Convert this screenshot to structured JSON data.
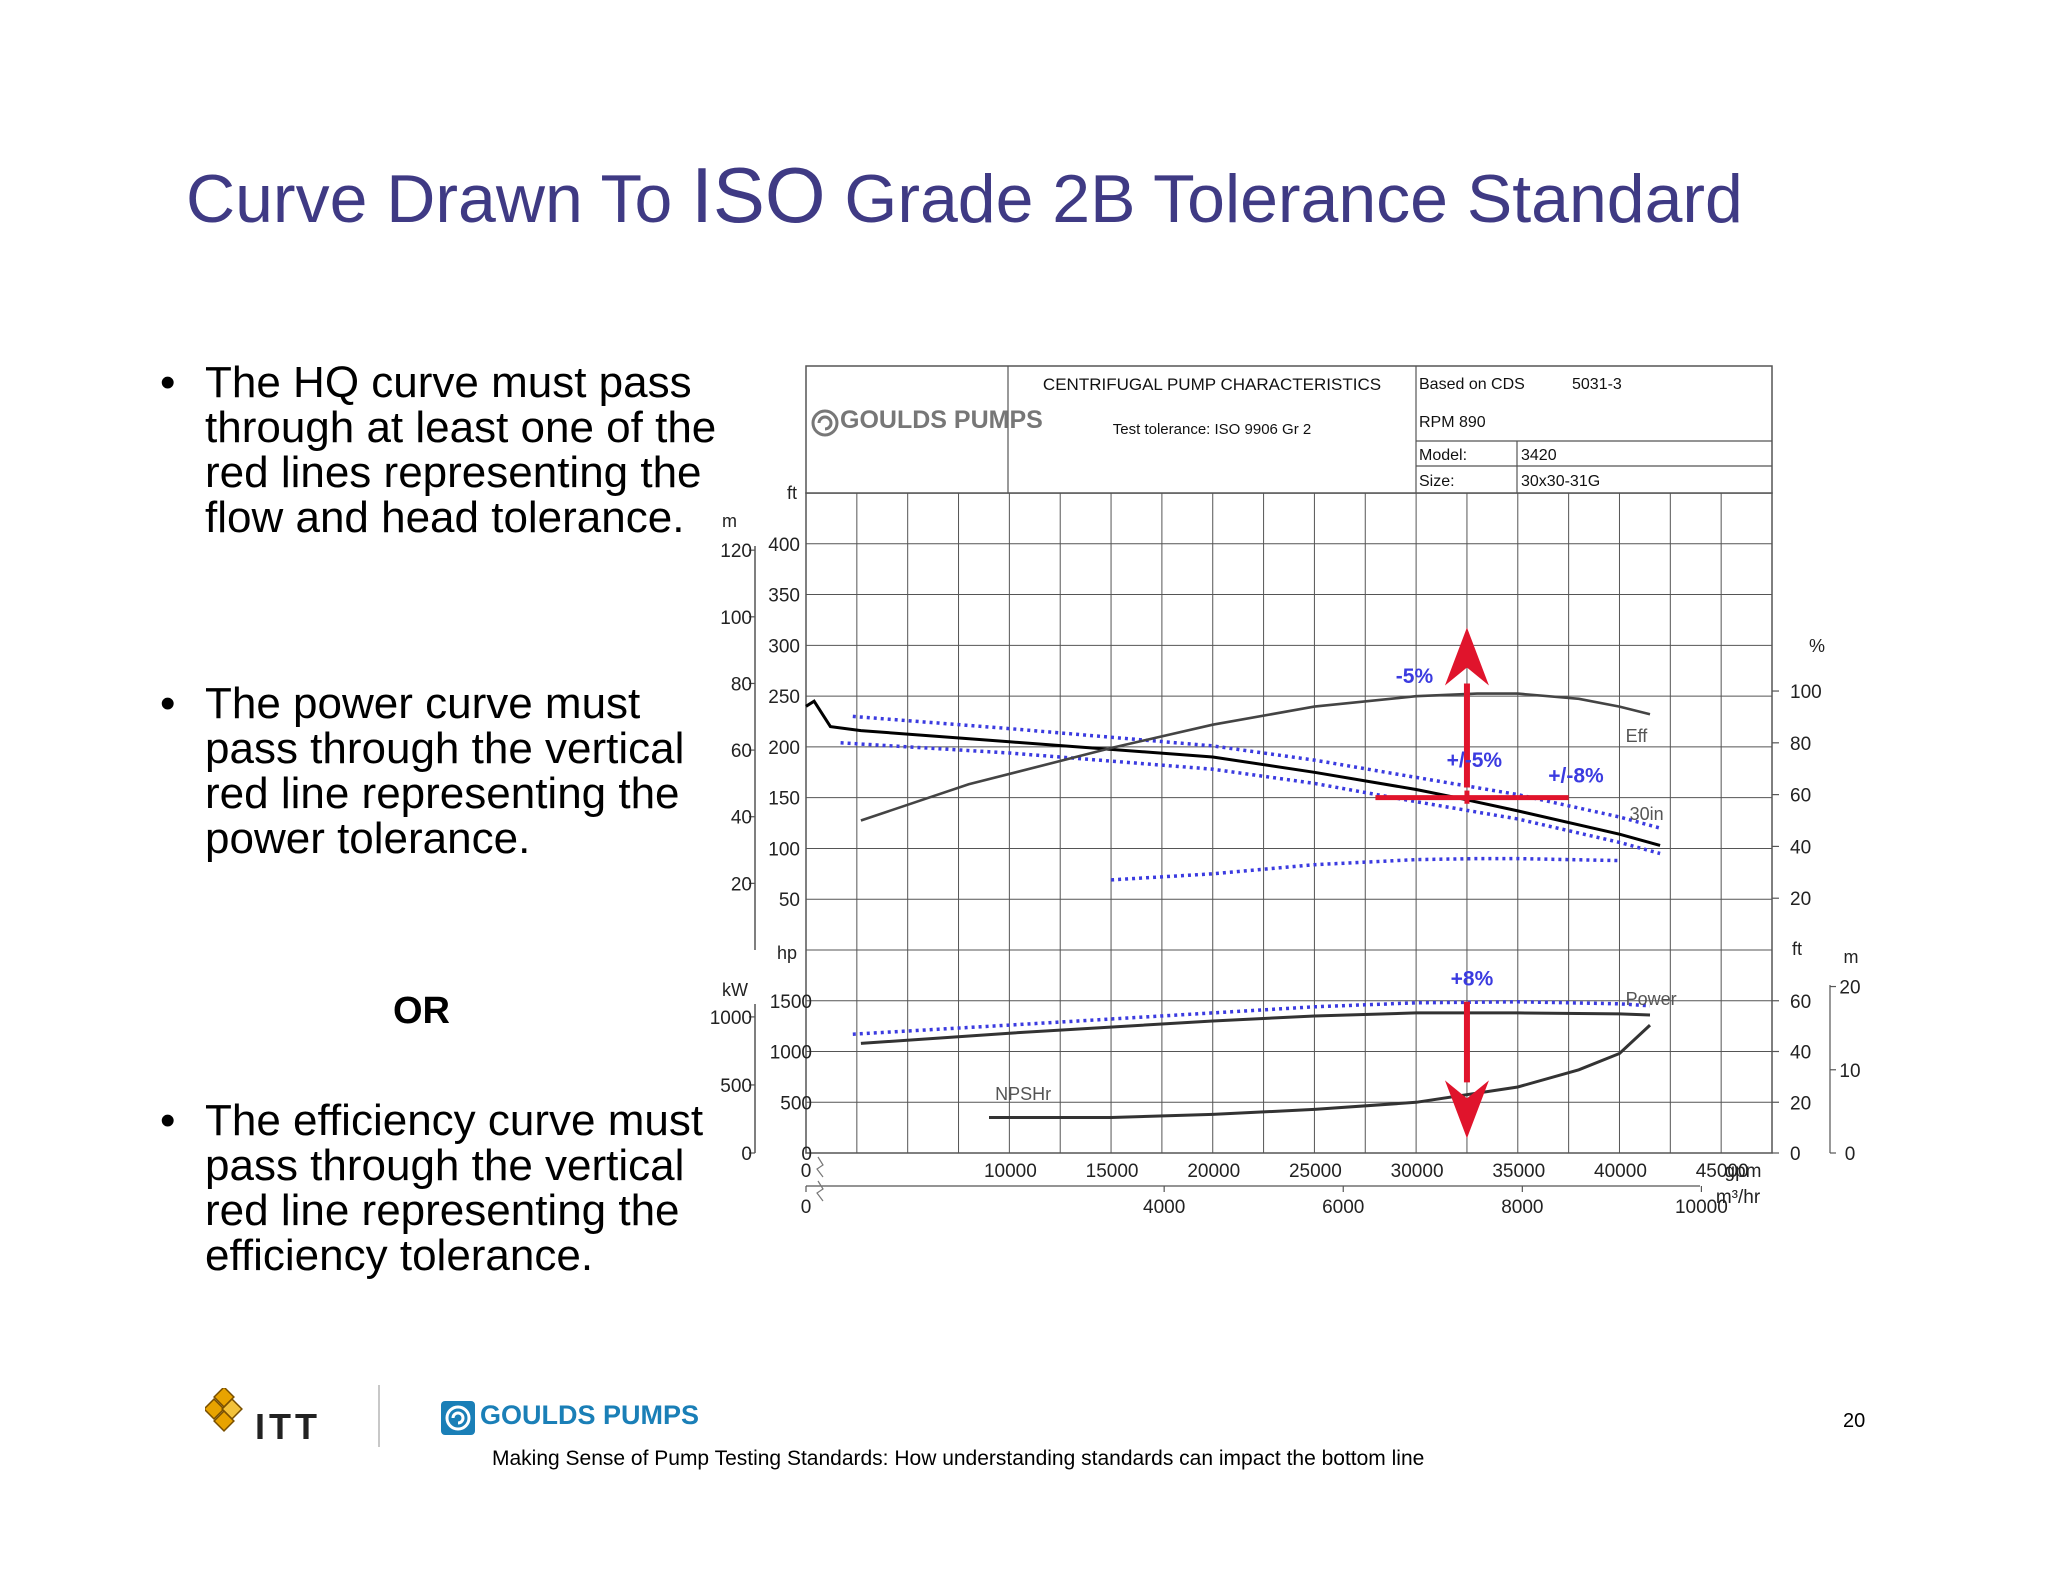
{
  "title": {
    "part1": "Curve Drawn To ",
    "part2": "ISO",
    "part3": " Grade 2B Tolerance Standard"
  },
  "bullets": [
    {
      "marker": "•",
      "text": "The HQ curve must pass through at least one of the red lines representing the flow and head tolerance."
    },
    {
      "marker": "•",
      "text": "The power curve must pass through the vertical red line representing the power tolerance."
    },
    {
      "marker": "•",
      "text": "The efficiency curve must pass through the vertical red line representing the efficiency tolerance."
    }
  ],
  "or_label": "OR",
  "header": {
    "brand": "GOULDS PUMPS",
    "chart_title": "CENTRIFUGAL PUMP CHARACTERISTICS",
    "tolerance": "Test tolerance: ISO 9906 Gr 2",
    "based_on_label": "Based on CDS",
    "based_on_value": "5031-3",
    "rpm": "RPM  890",
    "model_label": "Model:",
    "model_value": "3420",
    "size_label": "Size:",
    "size_value": "30x30-31G"
  },
  "footer": {
    "itt": "ITT",
    "goulds": "GOULDS PUMPS",
    "caption": "Making Sense of Pump Testing Standards: How understanding standards can impact the bottom line",
    "page": "20"
  },
  "colors": {
    "title": "#3f3a84",
    "tolerance_blue": "#3b3be0",
    "red": "#e0142c",
    "curve": "#333333",
    "grid": "#555555"
  },
  "chart_data": {
    "type": "line",
    "x_unit": "gpm",
    "x_unit2": "m³/hr",
    "x_ticks": [
      0,
      10000,
      15000,
      20000,
      25000,
      30000,
      35000,
      40000,
      45000
    ],
    "x_ticks2": [
      0,
      4000,
      6000,
      8000,
      10000
    ],
    "xlim": [
      0,
      47500
    ],
    "upper": {
      "ylabel_ft": "ft",
      "ylabel_m": "m",
      "ylabel_pct": "%",
      "ft_ticks": [
        50,
        100,
        150,
        200,
        250,
        300,
        350,
        400
      ],
      "m_ticks": [
        20,
        40,
        60,
        80,
        100,
        120
      ],
      "pct_ticks": [
        20,
        40,
        60,
        80,
        100
      ],
      "ylim_ft": [
        0,
        450
      ],
      "series": [
        {
          "name": "30in",
          "x": [
            0,
            400,
            1200,
            2700,
            10000,
            20000,
            25000,
            30000,
            32000,
            35000,
            40000,
            42000
          ],
          "y": [
            240,
            245,
            220,
            216,
            205,
            190,
            175,
            158,
            150,
            137,
            114,
            103
          ]
        },
        {
          "name": "Eff",
          "x": [
            2700,
            8000,
            15000,
            20000,
            25000,
            30000,
            33000,
            35000,
            38000,
            40000,
            41500
          ],
          "y": [
            50,
            64,
            78,
            87,
            94,
            98,
            99,
            99,
            97,
            94,
            91
          ]
        }
      ],
      "tolerance_bands": [
        {
          "x": [
            2300,
            10000,
            20000,
            25000,
            30000,
            35000,
            40000,
            42000
          ],
          "y": [
            230,
            218,
            201,
            187,
            170,
            153,
            131,
            120
          ]
        },
        {
          "x": [
            1700,
            10000,
            20000,
            25000,
            30000,
            35000,
            40000,
            42000
          ],
          "y": [
            204,
            194,
            178,
            164,
            146,
            129,
            106,
            95
          ]
        },
        {
          "x": [
            15000,
            20000,
            25000,
            30000,
            33000,
            35000,
            40000
          ],
          "y": [
            69,
            75,
            84,
            89,
            90,
            90,
            88
          ]
        }
      ],
      "annotations": [
        {
          "text": "-5%",
          "x": 29000,
          "y": 263
        },
        {
          "text": "+/-5%",
          "x": 31500,
          "y": 180
        },
        {
          "text": "+/-8%",
          "x": 36500,
          "y": 165
        },
        {
          "text": "Eff",
          "x": 40300,
          "y": 205
        },
        {
          "text": "30in",
          "x": 40500,
          "y": 128
        }
      ],
      "red_markers": [
        {
          "kind": "arrow_up",
          "x": 32500,
          "y_from": 160,
          "y_to": 290
        },
        {
          "kind": "hline",
          "x_from": 28000,
          "x_to": 37500,
          "y": 150
        },
        {
          "kind": "vline",
          "x": 32500,
          "y_from": 144,
          "y_to": 157
        }
      ]
    },
    "lower": {
      "ylabel_hp": "hp",
      "ylabel_kw": "kW",
      "ylabel_ft": "ft",
      "ylabel_m": "m",
      "hp_ticks": [
        0,
        500,
        1000,
        1500
      ],
      "kw_ticks": [
        0,
        500,
        1000
      ],
      "ft_ticks": [
        0,
        20,
        40,
        60
      ],
      "m_ticks": [
        0,
        10,
        20
      ],
      "ylim_hp": [
        0,
        2000
      ],
      "series": [
        {
          "name": "Power",
          "x": [
            2700,
            10000,
            20000,
            25000,
            30000,
            35000,
            40000,
            41500
          ],
          "y": [
            1080,
            1180,
            1300,
            1350,
            1380,
            1380,
            1370,
            1360
          ]
        },
        {
          "name": "NPSHr",
          "x": [
            9000,
            15000,
            20000,
            25000,
            30000,
            35000,
            38000,
            40000,
            41500
          ],
          "y": [
            350,
            350,
            380,
            430,
            500,
            650,
            820,
            980,
            1260
          ]
        }
      ],
      "tolerance_bands": [
        {
          "x": [
            2300,
            10000,
            20000,
            25000,
            30000,
            35000,
            40000,
            41500
          ],
          "y": [
            1170,
            1260,
            1380,
            1440,
            1480,
            1490,
            1470,
            1450
          ]
        }
      ],
      "annotations": [
        {
          "text": "+8%",
          "x": 31700,
          "y": 1650
        },
        {
          "text": "Power",
          "x": 40300,
          "y": 1460
        },
        {
          "text": "NPSHr",
          "x": 9300,
          "y": 520
        }
      ],
      "red_markers": [
        {
          "kind": "arrow_down",
          "x": 32500,
          "y_from": 1490,
          "y_to": 420
        }
      ]
    }
  }
}
